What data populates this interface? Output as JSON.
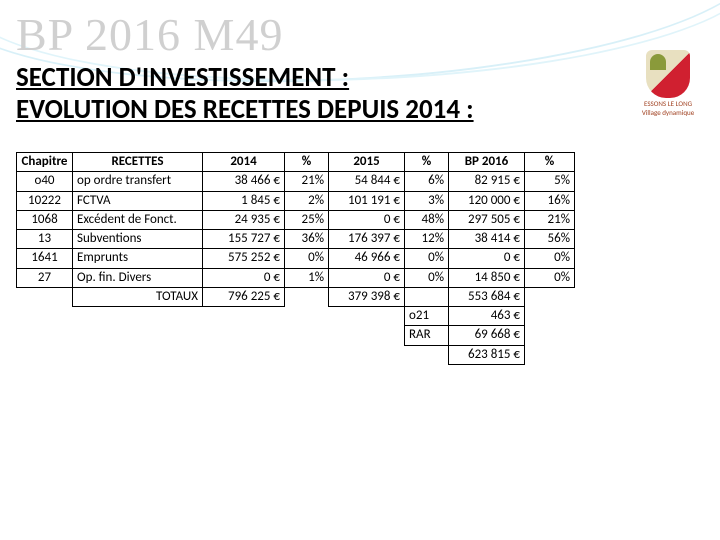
{
  "watermark": "BP 2016 M49",
  "logo": {
    "line1": "ESSONS LE LONG",
    "line2": "Village dynamique"
  },
  "heading_line1": "SECTION D'INVESTISSEMENT :",
  "heading_line2": "EVOLUTION DES RECETTES DEPUIS 2014 :",
  "table": {
    "headers": {
      "chapitre": "Chapitre",
      "recettes": "RECETTES",
      "y2014": "2014",
      "p1": "%",
      "y2015": "2015",
      "p2": "%",
      "bp2016": "BP 2016",
      "p3": "%"
    },
    "rows": [
      {
        "chap": "o40",
        "lib": "op ordre transfert",
        "y14": "38 466 €",
        "p1": "21%",
        "y15": "54 844 €",
        "p2": "6%",
        "bp": "82 915 €",
        "p3": "5%"
      },
      {
        "chap": "10222",
        "lib": "FCTVA",
        "y14": "1 845 €",
        "p1": "2%",
        "y15": "101 191 €",
        "p2": "3%",
        "bp": "120 000 €",
        "p3": "16%"
      },
      {
        "chap": "1068",
        "lib": "Excédent de Fonct.",
        "y14": "24 935 €",
        "p1": "25%",
        "y15": "0 €",
        "p2": "48%",
        "bp": "297 505 €",
        "p3": "21%"
      },
      {
        "chap": "13",
        "lib": "Subventions",
        "y14": "155 727 €",
        "p1": "36%",
        "y15": "176 397 €",
        "p2": "12%",
        "bp": "38 414 €",
        "p3": "56%"
      },
      {
        "chap": "1641",
        "lib": "Emprunts",
        "y14": "575 252 €",
        "p1": "0%",
        "y15": "46 966 €",
        "p2": "0%",
        "bp": "0 €",
        "p3": "0%"
      },
      {
        "chap": "27",
        "lib": "Op. fin. Divers",
        "y14": "0 €",
        "p1": "1%",
        "y15": "0 €",
        "p2": "0%",
        "bp": "14 850 €",
        "p3": "0%"
      }
    ],
    "totaux": {
      "label": "TOTAUX",
      "y14": "796 225 €",
      "y15": "379 398 €",
      "bp": "553 684 €"
    },
    "footer": [
      {
        "label": "o21",
        "val": "463 €"
      },
      {
        "label": "RAR",
        "val": "69 668 €"
      }
    ],
    "grand_total": "623 815 €"
  }
}
